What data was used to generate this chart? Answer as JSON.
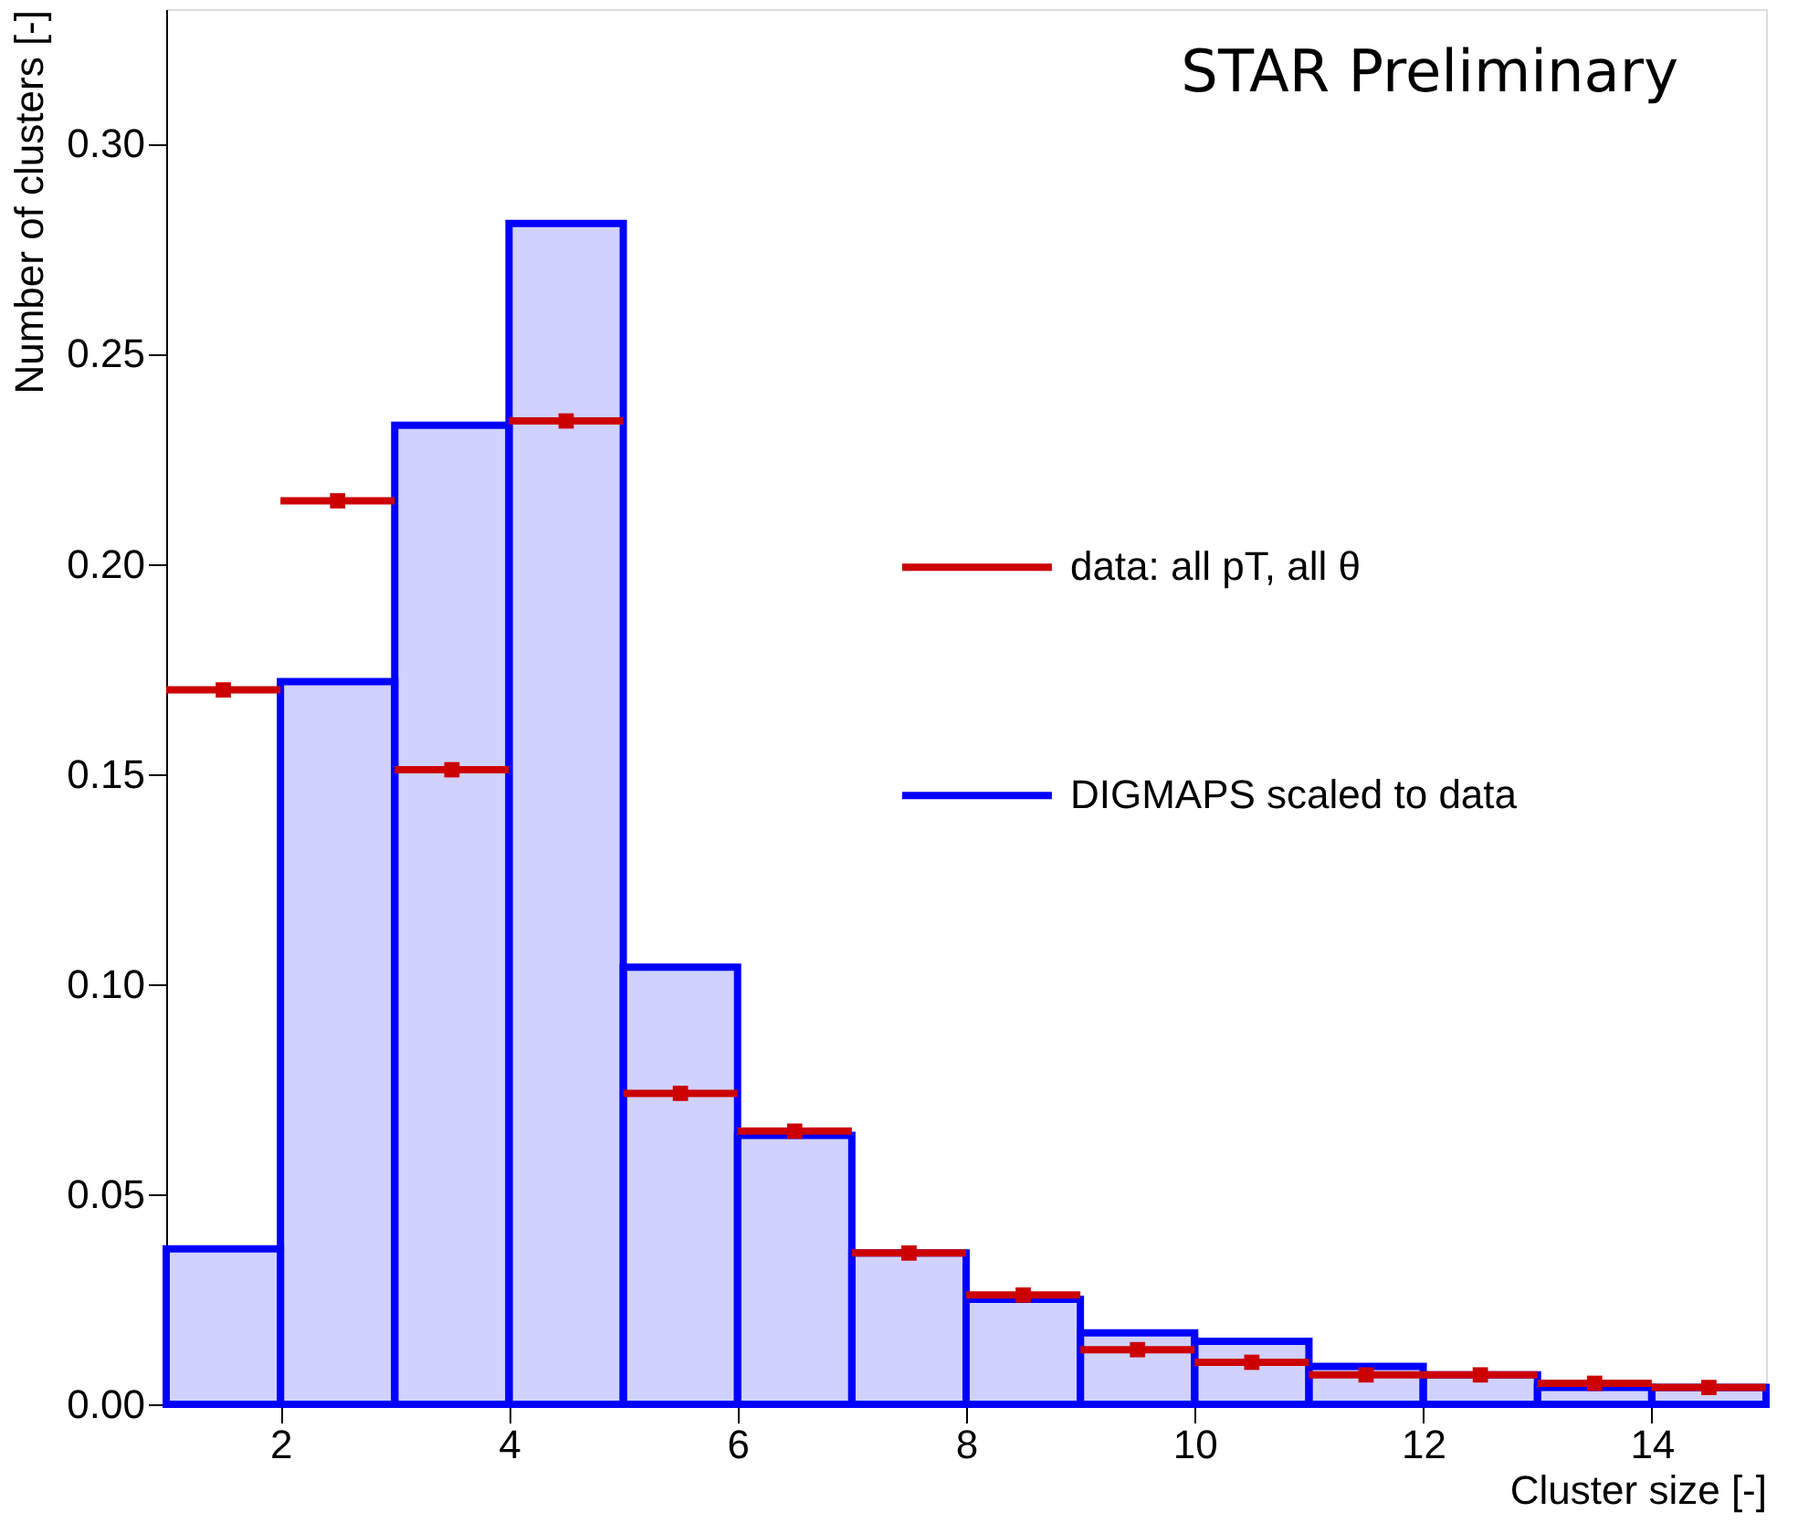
{
  "chart_data": {
    "type": "histogram",
    "xlabel": "Cluster size [-]",
    "ylabel": "Number of clusters [-]",
    "annotations": [
      "STAR Preliminary"
    ],
    "bins": [
      1,
      2,
      3,
      4,
      5,
      6,
      7,
      8,
      9,
      10,
      11,
      12,
      13,
      14,
      15
    ],
    "series": [
      {
        "name": "DIGMAPS scaled to data",
        "color": "#0000ff",
        "values": [
          0.037,
          0.172,
          0.233,
          0.281,
          0.104,
          0.064,
          0.036,
          0.025,
          0.017,
          0.015,
          0.009,
          0.007,
          0.004,
          0.004
        ]
      },
      {
        "name": "data: all pT, all θ",
        "type": "scatter",
        "color": "#cc0000",
        "marker": "square",
        "x": [
          1.5,
          2.5,
          3.5,
          4.5,
          5.5,
          6.5,
          7.5,
          8.5,
          9.5,
          10.5,
          11.5,
          12.5,
          13.5,
          14.5
        ],
        "values": [
          0.17,
          0.215,
          0.151,
          0.234,
          0.074,
          0.065,
          0.036,
          0.026,
          0.013,
          0.01,
          0.007,
          0.007,
          0.005,
          0.004
        ],
        "xerrors": [
          0.5,
          0.5,
          0.5,
          0.5,
          0.5,
          0.5,
          0.5,
          0.5,
          0.5,
          0.5,
          0.5,
          0.5,
          0.5,
          0.5
        ]
      }
    ],
    "xlim": [
      1,
      15
    ],
    "xticks": [
      2,
      4,
      6,
      8,
      10,
      12,
      14
    ],
    "ylim": [
      0,
      0.332
    ],
    "yticks": [
      {
        "value": 0,
        "label": "0.00"
      },
      0.05,
      {
        "value": 0.1,
        "label": "0.10"
      },
      0.15,
      {
        "value": 0.2,
        "label": "0.20"
      },
      0.25,
      {
        "value": 0.3,
        "label": "0.30"
      }
    ],
    "grid": false,
    "legend": "right"
  }
}
